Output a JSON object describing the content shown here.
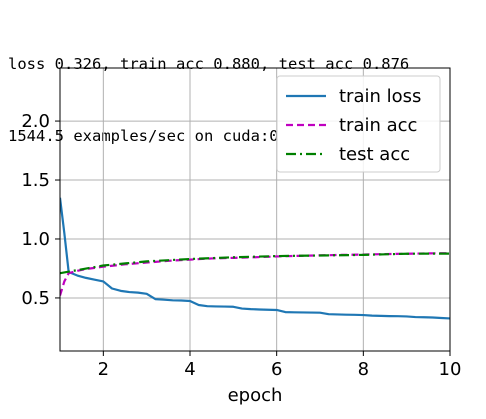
{
  "header": {
    "line1": "loss 0.326, train acc 0.880, test acc 0.876",
    "line2": "1544.5 examples/sec on cuda:0"
  },
  "chart_data": {
    "type": "line",
    "title": "",
    "xlabel": "epoch",
    "ylabel": "",
    "xlim": [
      1,
      10
    ],
    "ylim": [
      0.05,
      2.45
    ],
    "xticks": [
      2,
      4,
      6,
      8,
      10
    ],
    "yticks": [
      0.5,
      1.0,
      1.5,
      2.0
    ],
    "xtick_labels": [
      "2",
      "4",
      "6",
      "8",
      "10"
    ],
    "ytick_labels": [
      "0.5",
      "1.0",
      "1.5",
      "2.0"
    ],
    "grid": true,
    "legend_position": "top-right",
    "series": [
      {
        "name": "train loss",
        "color": "#1f77b4",
        "dash": "solid",
        "x": [
          1.0,
          1.1,
          1.2,
          1.4,
          1.6,
          1.8,
          2.0,
          2.2,
          2.4,
          2.6,
          2.8,
          3.0,
          3.2,
          3.4,
          3.6,
          3.8,
          4.0,
          4.2,
          4.4,
          4.6,
          4.8,
          5.0,
          5.2,
          5.4,
          5.6,
          5.8,
          6.0,
          6.2,
          6.4,
          6.6,
          6.8,
          7.0,
          7.2,
          7.4,
          7.6,
          7.8,
          8.0,
          8.2,
          8.4,
          8.6,
          8.8,
          9.0,
          9.2,
          9.4,
          9.6,
          9.8,
          10.0
        ],
        "y": [
          1.35,
          1.05,
          0.72,
          0.69,
          0.67,
          0.655,
          0.64,
          0.58,
          0.56,
          0.55,
          0.545,
          0.535,
          0.49,
          0.485,
          0.48,
          0.478,
          0.474,
          0.44,
          0.43,
          0.428,
          0.427,
          0.425,
          0.41,
          0.405,
          0.402,
          0.4,
          0.398,
          0.38,
          0.378,
          0.377,
          0.376,
          0.375,
          0.362,
          0.36,
          0.358,
          0.357,
          0.355,
          0.35,
          0.348,
          0.346,
          0.345,
          0.343,
          0.338,
          0.336,
          0.334,
          0.33,
          0.326
        ]
      },
      {
        "name": "train acc",
        "color": "#bf00bf",
        "dash": "dashed",
        "x": [
          1.0,
          1.1,
          1.2,
          1.4,
          1.6,
          1.8,
          2.0,
          2.5,
          3.0,
          3.5,
          4.0,
          4.5,
          5.0,
          5.5,
          6.0,
          6.5,
          7.0,
          7.5,
          8.0,
          8.5,
          9.0,
          9.5,
          10.0
        ],
        "y": [
          0.52,
          0.64,
          0.71,
          0.73,
          0.745,
          0.755,
          0.765,
          0.785,
          0.8,
          0.815,
          0.825,
          0.835,
          0.84,
          0.845,
          0.852,
          0.857,
          0.861,
          0.865,
          0.868,
          0.872,
          0.875,
          0.878,
          0.88
        ]
      },
      {
        "name": "test acc",
        "color": "#008000",
        "dash": "dashdot",
        "x": [
          1,
          2,
          3,
          4,
          5,
          6,
          7,
          8,
          9,
          10
        ],
        "y": [
          0.71,
          0.775,
          0.81,
          0.83,
          0.845,
          0.855,
          0.86,
          0.865,
          0.875,
          0.876
        ]
      }
    ]
  }
}
